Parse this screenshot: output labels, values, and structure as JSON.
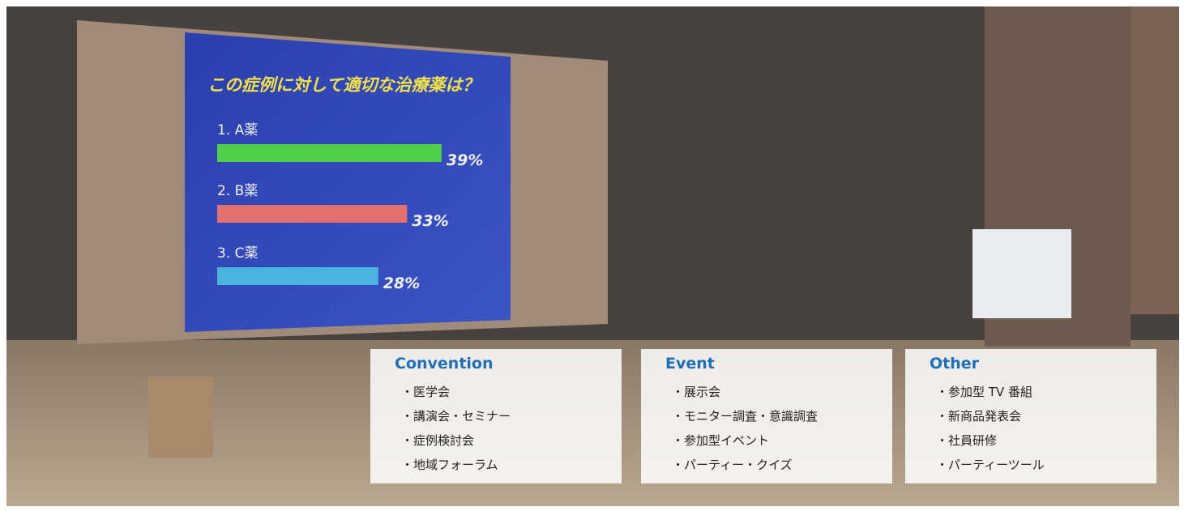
{
  "slide": {
    "title": "この症例に対して適切な治療薬は？",
    "items": [
      {
        "label": "1. A薬",
        "value": 39,
        "value_label": "39%",
        "color": "#4fce4a"
      },
      {
        "label": "2. B薬",
        "value": 33,
        "value_label": "33%",
        "color": "#e2706c"
      },
      {
        "label": "3. C薬",
        "value": 28,
        "value_label": "28%",
        "color": "#49b4e0"
      }
    ]
  },
  "panels": [
    {
      "title": "Convention",
      "items": [
        "・医学会",
        "・講演会・セミナー",
        "・症例検討会",
        "・地域フォーラム"
      ]
    },
    {
      "title": "Event",
      "items": [
        "・展示会",
        "・モニター調査・意識調査",
        "・参加型イベント",
        "・パーティー・クイズ"
      ]
    },
    {
      "title": "Other",
      "items": [
        "・参加型 TV 番組",
        "・新商品発表会",
        "・社員研修",
        "・パーティーツール"
      ]
    }
  ]
}
